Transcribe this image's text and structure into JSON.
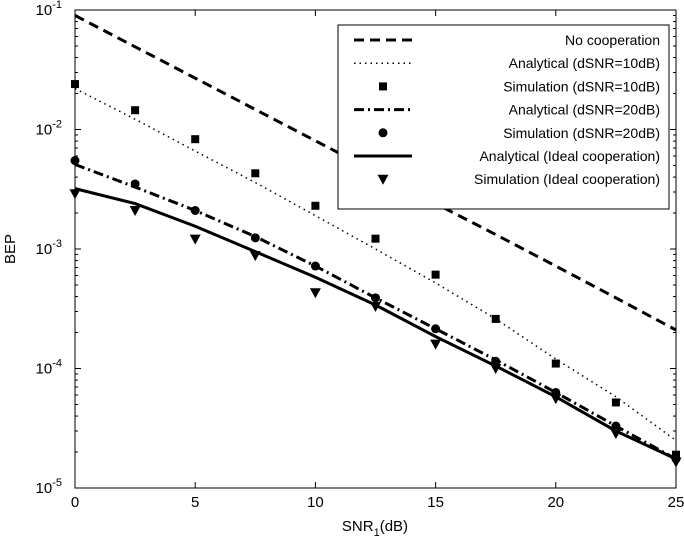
{
  "chart_data": {
    "type": "line",
    "title": "",
    "xlabel": {
      "main": "SNR",
      "sub": "1",
      "suffix": "(dB)"
    },
    "ylabel": "BEP",
    "xlim": [
      0,
      25
    ],
    "ylim": [
      1e-05,
      0.1
    ],
    "yscale": "log",
    "grid": false,
    "legend_position": "top-right",
    "x_ticks": [
      0,
      5,
      10,
      15,
      20,
      25
    ],
    "y_ticks": [
      {
        "value": 1e-05,
        "base": "10",
        "exp": "-5"
      },
      {
        "value": 0.0001,
        "base": "10",
        "exp": "-4"
      },
      {
        "value": 0.001,
        "base": "10",
        "exp": "-3"
      },
      {
        "value": 0.01,
        "base": "10",
        "exp": "-2"
      },
      {
        "value": 0.1,
        "base": "10",
        "exp": "-1"
      }
    ],
    "series": [
      {
        "name": "No cooperation",
        "kind": "line",
        "style": "dashed",
        "marker": "none",
        "x": [
          0,
          2.5,
          5,
          7.5,
          10,
          12.5,
          15,
          17.5,
          20,
          22.5,
          25
        ],
        "y": [
          0.09,
          0.0492,
          0.0269,
          0.0147,
          0.00805,
          0.0044,
          0.0024,
          0.00132,
          0.00072,
          0.00039,
          0.00021
        ]
      },
      {
        "name": "Analytical (dSNR=10dB)",
        "kind": "line",
        "style": "dotted",
        "marker": "none",
        "x": [
          0,
          2.5,
          5,
          7.5,
          10,
          12.5,
          15,
          17.5,
          20,
          22.5,
          25
        ],
        "y": [
          0.022,
          0.0122,
          0.0066,
          0.0036,
          0.0019,
          0.001,
          0.00052,
          0.00026,
          0.00012,
          5.8e-05,
          2.5e-05
        ]
      },
      {
        "name": "Simulation (dSNR=10dB)",
        "kind": "scatter",
        "style": "none",
        "marker": "square",
        "x": [
          0,
          2.5,
          5,
          7.5,
          10,
          12.5,
          15,
          17.5,
          20,
          22.5,
          25
        ],
        "y": [
          0.024,
          0.0145,
          0.0083,
          0.0043,
          0.0023,
          0.00122,
          0.00061,
          0.00026,
          0.00011,
          5.2e-05,
          1.9e-05
        ]
      },
      {
        "name": "Analytical (dSNR=20dB)",
        "kind": "line",
        "style": "dashdot",
        "marker": "none",
        "x": [
          0,
          2.5,
          5,
          7.5,
          10,
          12.5,
          15,
          17.5,
          20,
          22.5,
          25
        ],
        "y": [
          0.0051,
          0.0033,
          0.0021,
          0.00127,
          0.00072,
          0.00039,
          0.000215,
          0.000118,
          6.3e-05,
          3.3e-05,
          1.75e-05
        ]
      },
      {
        "name": "Simulation (dSNR=20dB)",
        "kind": "scatter",
        "style": "none",
        "marker": "circle",
        "x": [
          0,
          2.5,
          5,
          7.5,
          10,
          12.5,
          15,
          17.5,
          20,
          22.5,
          25
        ],
        "y": [
          0.0055,
          0.0035,
          0.0021,
          0.00124,
          0.00072,
          0.00039,
          0.000215,
          0.000115,
          6.3e-05,
          3.3e-05,
          1.75e-05
        ]
      },
      {
        "name": "Analytical (Ideal cooperation)",
        "kind": "line",
        "style": "solid",
        "marker": "none",
        "x": [
          0,
          2.5,
          5,
          7.5,
          10,
          12.5,
          15,
          17.5,
          20,
          22.5,
          25
        ],
        "y": [
          0.0032,
          0.0024,
          0.00155,
          0.00095,
          0.00058,
          0.00034,
          0.000185,
          0.000105,
          5.8e-05,
          3e-05,
          1.75e-05
        ]
      },
      {
        "name": "Simulation (Ideal cooperation)",
        "kind": "scatter",
        "style": "none",
        "marker": "triangle-down",
        "x": [
          0,
          2.5,
          5,
          7.5,
          10,
          12.5,
          15,
          17.5,
          20,
          22.5,
          25
        ],
        "y": [
          0.0029,
          0.0021,
          0.00121,
          0.00088,
          0.00043,
          0.00033,
          0.00016,
          0.0001,
          5.6e-05,
          2.85e-05,
          1.65e-05
        ]
      }
    ]
  }
}
